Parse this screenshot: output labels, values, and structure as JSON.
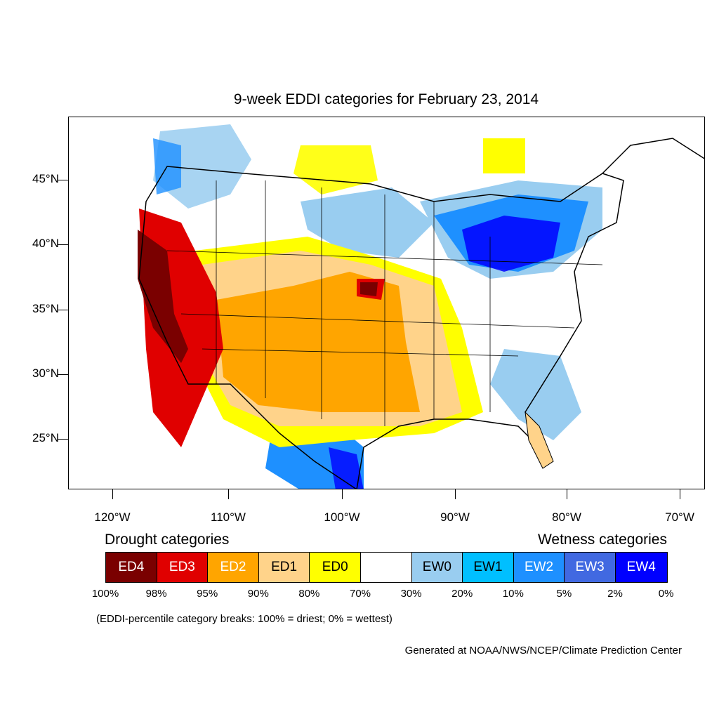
{
  "title": "9-week EDDI categories for February 23, 2014",
  "latitude_labels": [
    "45°N",
    "40°N",
    "35°N",
    "30°N",
    "25°N"
  ],
  "longitude_labels": [
    "120°W",
    "110°W",
    "100°W",
    "90°W",
    "80°W",
    "70°W"
  ],
  "legend": {
    "drought_heading": "Drought categories",
    "wetness_heading": "Wetness categories",
    "categories": [
      {
        "label": "ED4",
        "color": "#7a0000",
        "text_color": "#ffffff"
      },
      {
        "label": "ED3",
        "color": "#e00000",
        "text_color": "#ffffff"
      },
      {
        "label": "ED2",
        "color": "#ffa500",
        "text_color": "#ffffff"
      },
      {
        "label": "ED1",
        "color": "#ffd38a",
        "text_color": "#000000"
      },
      {
        "label": "ED0",
        "color": "#ffff00",
        "text_color": "#000000"
      },
      {
        "label": "",
        "color": "#ffffff",
        "text_color": "#000000"
      },
      {
        "label": "EW0",
        "color": "#99cdf0",
        "text_color": "#000000"
      },
      {
        "label": "EW1",
        "color": "#00bfff",
        "text_color": "#000000"
      },
      {
        "label": "EW2",
        "color": "#1e90ff",
        "text_color": "#ffffff"
      },
      {
        "label": "EW3",
        "color": "#4169e1",
        "text_color": "#ffffff"
      },
      {
        "label": "EW4",
        "color": "#0000ff",
        "text_color": "#ffffff"
      }
    ],
    "percent_breaks": [
      "100%",
      "98%",
      "95%",
      "90%",
      "80%",
      "70%",
      "30%",
      "20%",
      "10%",
      "5%",
      "2%",
      "0%"
    ]
  },
  "note": "(EDDI-percentile category breaks: 100% = driest; 0% = wettest)",
  "credit": "Generated at NOAA/NWS/NCEP/Climate Prediction Center"
}
